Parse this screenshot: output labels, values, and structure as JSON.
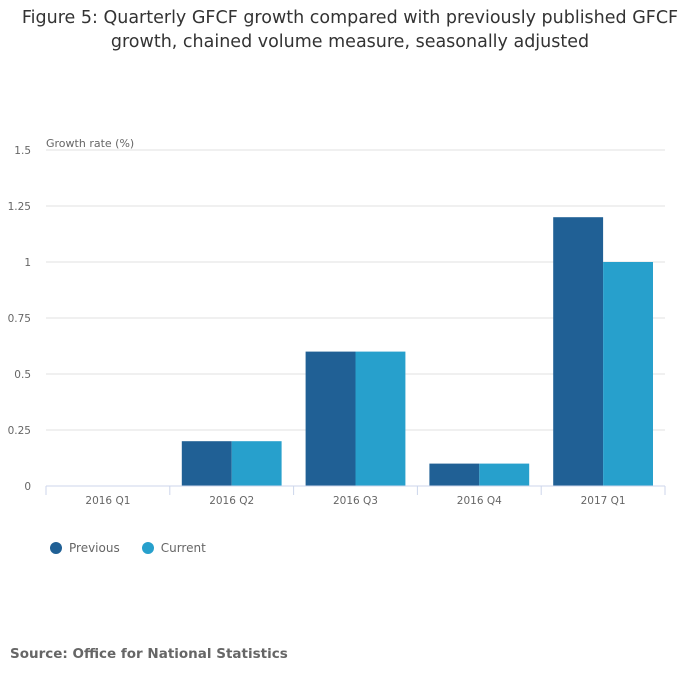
{
  "title": "Figure 5: Quarterly GFCF growth compared with previously published GFCF growth, chained volume measure, seasonally adjusted",
  "source": "Source: Office for National Statistics",
  "chart_data": {
    "type": "bar",
    "title": "Figure 5: Quarterly GFCF growth compared with previously published GFCF growth, chained volume measure, seasonally adjusted",
    "ylabel": "Growth rate (%)",
    "xlabel": "",
    "categories": [
      "2016 Q1",
      "2016 Q2",
      "2016 Q3",
      "2016 Q4",
      "2017 Q1"
    ],
    "series": [
      {
        "name": "Previous",
        "color": "#206095",
        "values": [
          0,
          0.2,
          0.6,
          0.1,
          1.2
        ]
      },
      {
        "name": "Current",
        "color": "#27a0cc",
        "values": [
          0,
          0.2,
          0.6,
          0.1,
          1.0
        ]
      }
    ],
    "ylim": [
      0,
      1.5
    ],
    "yticks": [
      "0",
      "0.25",
      "0.5",
      "0.75",
      "1",
      "1.25",
      "1.5"
    ],
    "grid": true,
    "legend": "bottom-left"
  }
}
